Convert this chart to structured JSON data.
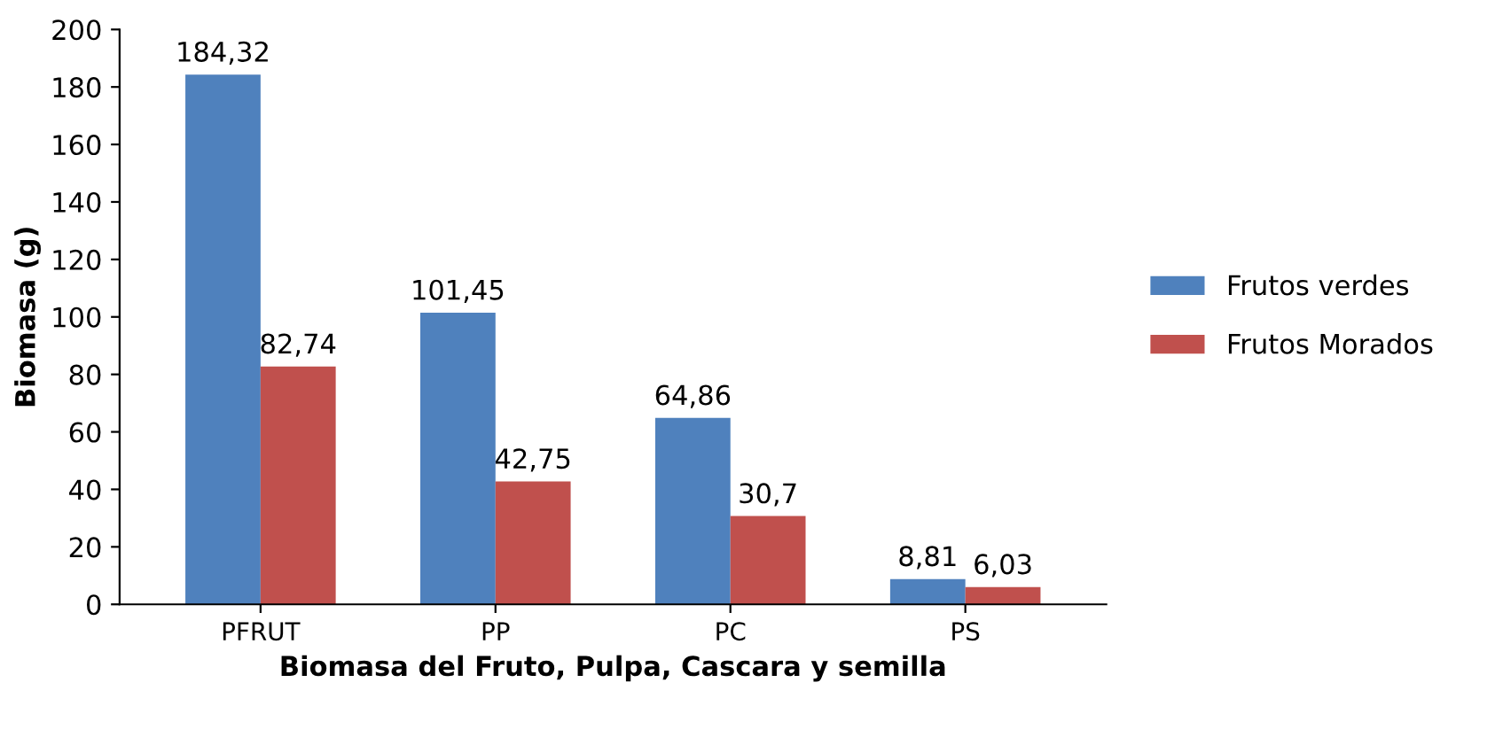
{
  "chart_data": {
    "type": "bar",
    "xlabel": "Biomasa del Fruto, Pulpa, Cascara y semilla",
    "ylabel": "Biomasa (g)",
    "categories": [
      "PFRUT",
      "PP",
      "PC",
      "PS"
    ],
    "series": [
      {
        "name": "Frutos verdes",
        "color": "#4f81bd",
        "values": [
          184.32,
          101.45,
          64.86,
          8.81
        ],
        "value_labels": [
          "184,32",
          "101,45",
          "64,86",
          "8,81"
        ]
      },
      {
        "name": "Frutos Morados",
        "color": "#c0504d",
        "values": [
          82.74,
          42.75,
          30.7,
          6.03
        ],
        "value_labels": [
          "82,74",
          "42,75",
          "30,7",
          "6,03"
        ]
      }
    ],
    "ylim": [
      0,
      200
    ],
    "yticks": [
      0,
      20,
      40,
      60,
      80,
      100,
      120,
      140,
      160,
      180,
      200
    ],
    "grid": false,
    "legend": "right"
  }
}
